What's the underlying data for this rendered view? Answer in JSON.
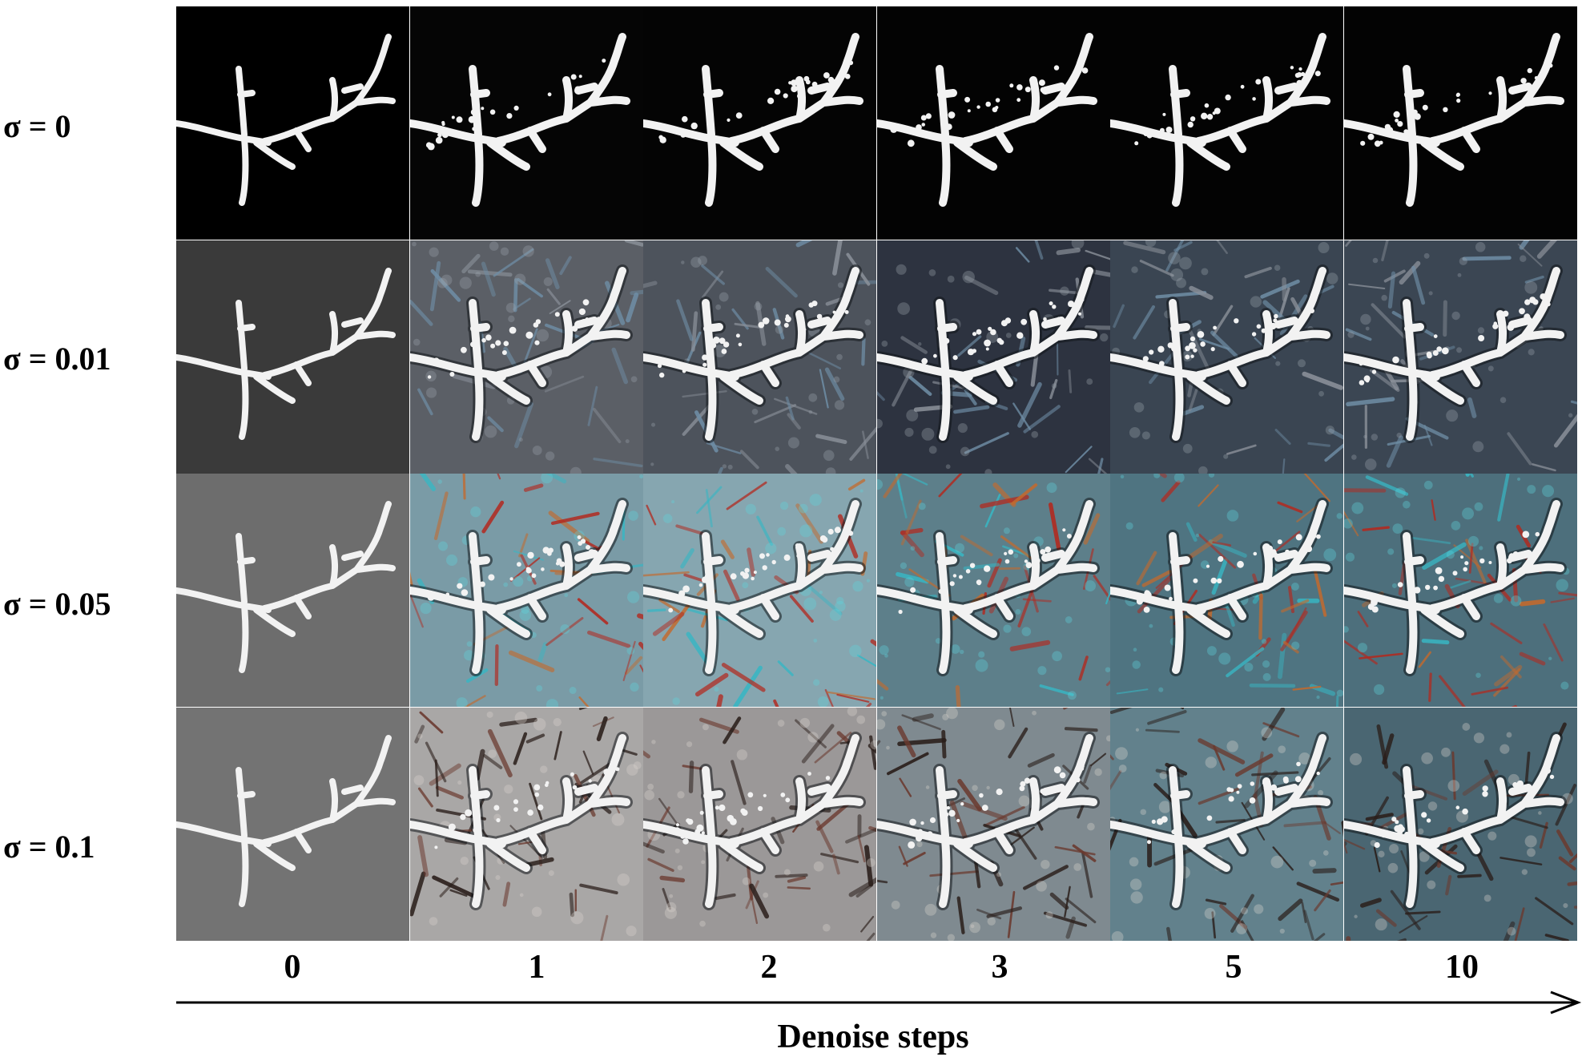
{
  "figure": {
    "row_labels": [
      "σ = 0",
      "σ = 0.01",
      "σ = 0.05",
      "σ = 0.1"
    ],
    "column_labels": [
      "0",
      "1",
      "2",
      "3",
      "5",
      "10"
    ],
    "axis_title": "Denoise steps",
    "palette": {
      "row_0": [
        "#000000",
        "#050505",
        "#040404",
        "#030303",
        "#030303",
        "#030303"
      ],
      "row_1": [
        "#3a3a3a",
        "#5b5f66",
        "#4d535c",
        "#2d3340",
        "#3a4552",
        "#3b4653"
      ],
      "row_2": [
        "#6d6d6d",
        "#7a9ba6",
        "#86a6b0",
        "#5d7f8a",
        "#4f7481",
        "#4d6f7c"
      ],
      "row_3": [
        "#737373",
        "#a9a7a6",
        "#9b9898",
        "#7f8a90",
        "#62818c",
        "#4a6672"
      ]
    },
    "branch_color": "#f2f2f2"
  }
}
